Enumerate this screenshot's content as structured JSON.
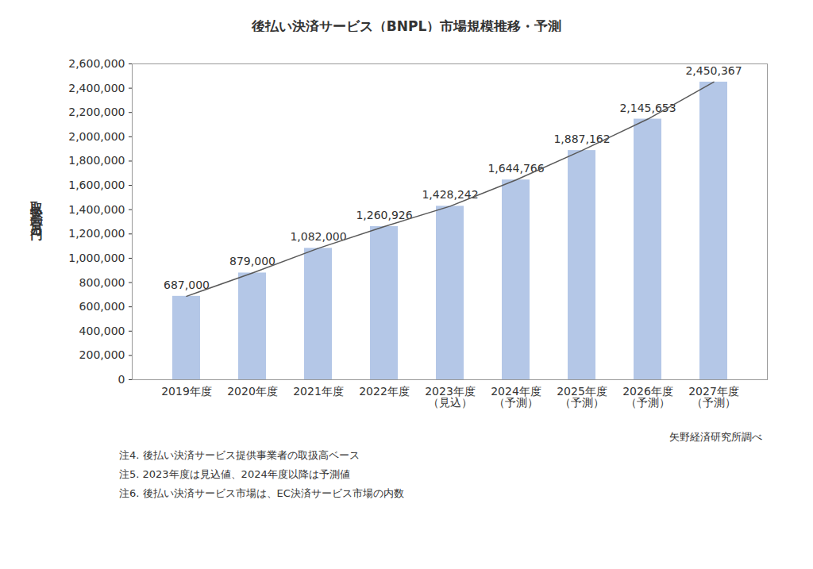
{
  "chart_data": {
    "type": "bar",
    "title": "後払い決済サービス（BNPL）市場規模推移・予測",
    "y_label": "取扱高（百万円）",
    "categories": [
      "2019年度",
      "2020年度",
      "2021年度",
      "2022年度",
      "2023年度\n（見込）",
      "2024年度\n（予測）",
      "2025年度\n（予測）",
      "2026年度\n（予測）",
      "2027年度\n（予測）"
    ],
    "series": [
      {
        "type": "bar",
        "color": "#b4c7e7",
        "values": [
          687000,
          879000,
          1082000,
          1260926,
          1428242,
          1644766,
          1887162,
          2145653,
          2450367
        ],
        "value_labels": [
          "687,000",
          "879,000",
          "1,082,000",
          "1,260,926",
          "1,428,242",
          "1,644,766",
          "1,887,162",
          "2,145,653",
          "2,450,367"
        ]
      },
      {
        "type": "line",
        "color": "#595959",
        "values": [
          687000,
          879000,
          1082000,
          1260926,
          1428242,
          1644766,
          1887162,
          2145653,
          2450367
        ]
      }
    ],
    "data_labels": true,
    "grid": false,
    "ylim": [
      0,
      2600000
    ],
    "yticks": [
      {
        "value": 0,
        "label": "0"
      },
      {
        "value": 200000,
        "label": "200,000"
      },
      {
        "value": 400000,
        "label": "400,000"
      },
      {
        "value": 600000,
        "label": "600,000"
      },
      {
        "value": 800000,
        "label": "800,000"
      },
      {
        "value": 1000000,
        "label": "1,000,000"
      },
      {
        "value": 1200000,
        "label": "1,200,000"
      },
      {
        "value": 1400000,
        "label": "1,400,000"
      },
      {
        "value": 1600000,
        "label": "1,600,000"
      },
      {
        "value": 1800000,
        "label": "1,800,000"
      },
      {
        "value": 2000000,
        "label": "2,000,000"
      },
      {
        "value": 2200000,
        "label": "2,200,000"
      },
      {
        "value": 2400000,
        "label": "2,400,000"
      },
      {
        "value": 2600000,
        "label": "2,600,000"
      }
    ],
    "source": "矢野経済研究所調べ",
    "annotations": [
      "注4. 後払い決済サービス提供事業者の取扱高ベース",
      "注5. 2023年度は見込値、2024年度以降は予測値",
      "注6. 後払い決済サービス市場は、EC決済サービス市場の内数"
    ]
  }
}
